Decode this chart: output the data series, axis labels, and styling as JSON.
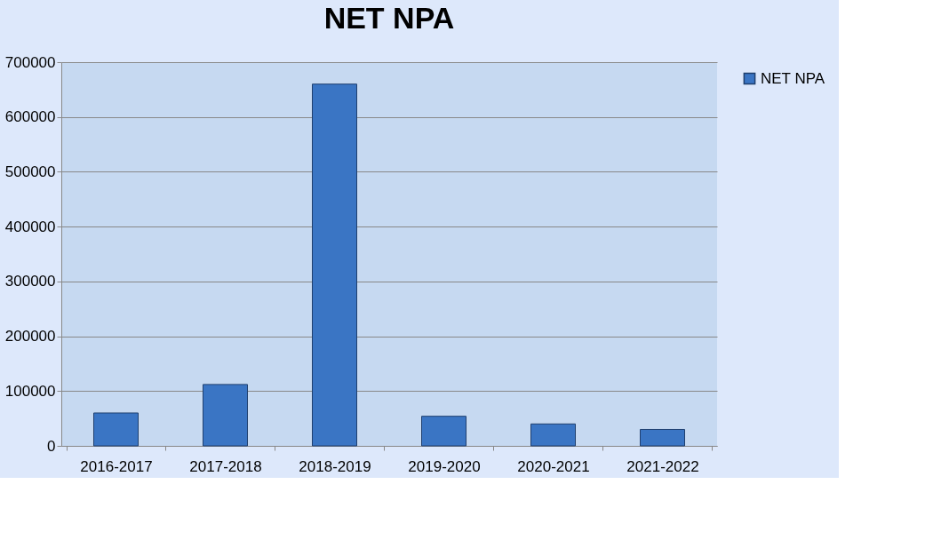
{
  "chart_data": {
    "type": "bar",
    "title": "NET NPA",
    "categories": [
      "2016-2017",
      "2017-2018",
      "2018-2019",
      "2019-2020",
      "2020-2021",
      "2021-2022"
    ],
    "series": [
      {
        "name": "NET NPA",
        "color": "#3a75c4",
        "values": [
          60000,
          112000,
          660000,
          54000,
          40000,
          30000
        ]
      }
    ],
    "ylim": [
      0,
      700000
    ],
    "yticks": [
      0,
      100000,
      200000,
      300000,
      400000,
      500000,
      600000,
      700000
    ],
    "grid": "y",
    "legend": "right"
  }
}
